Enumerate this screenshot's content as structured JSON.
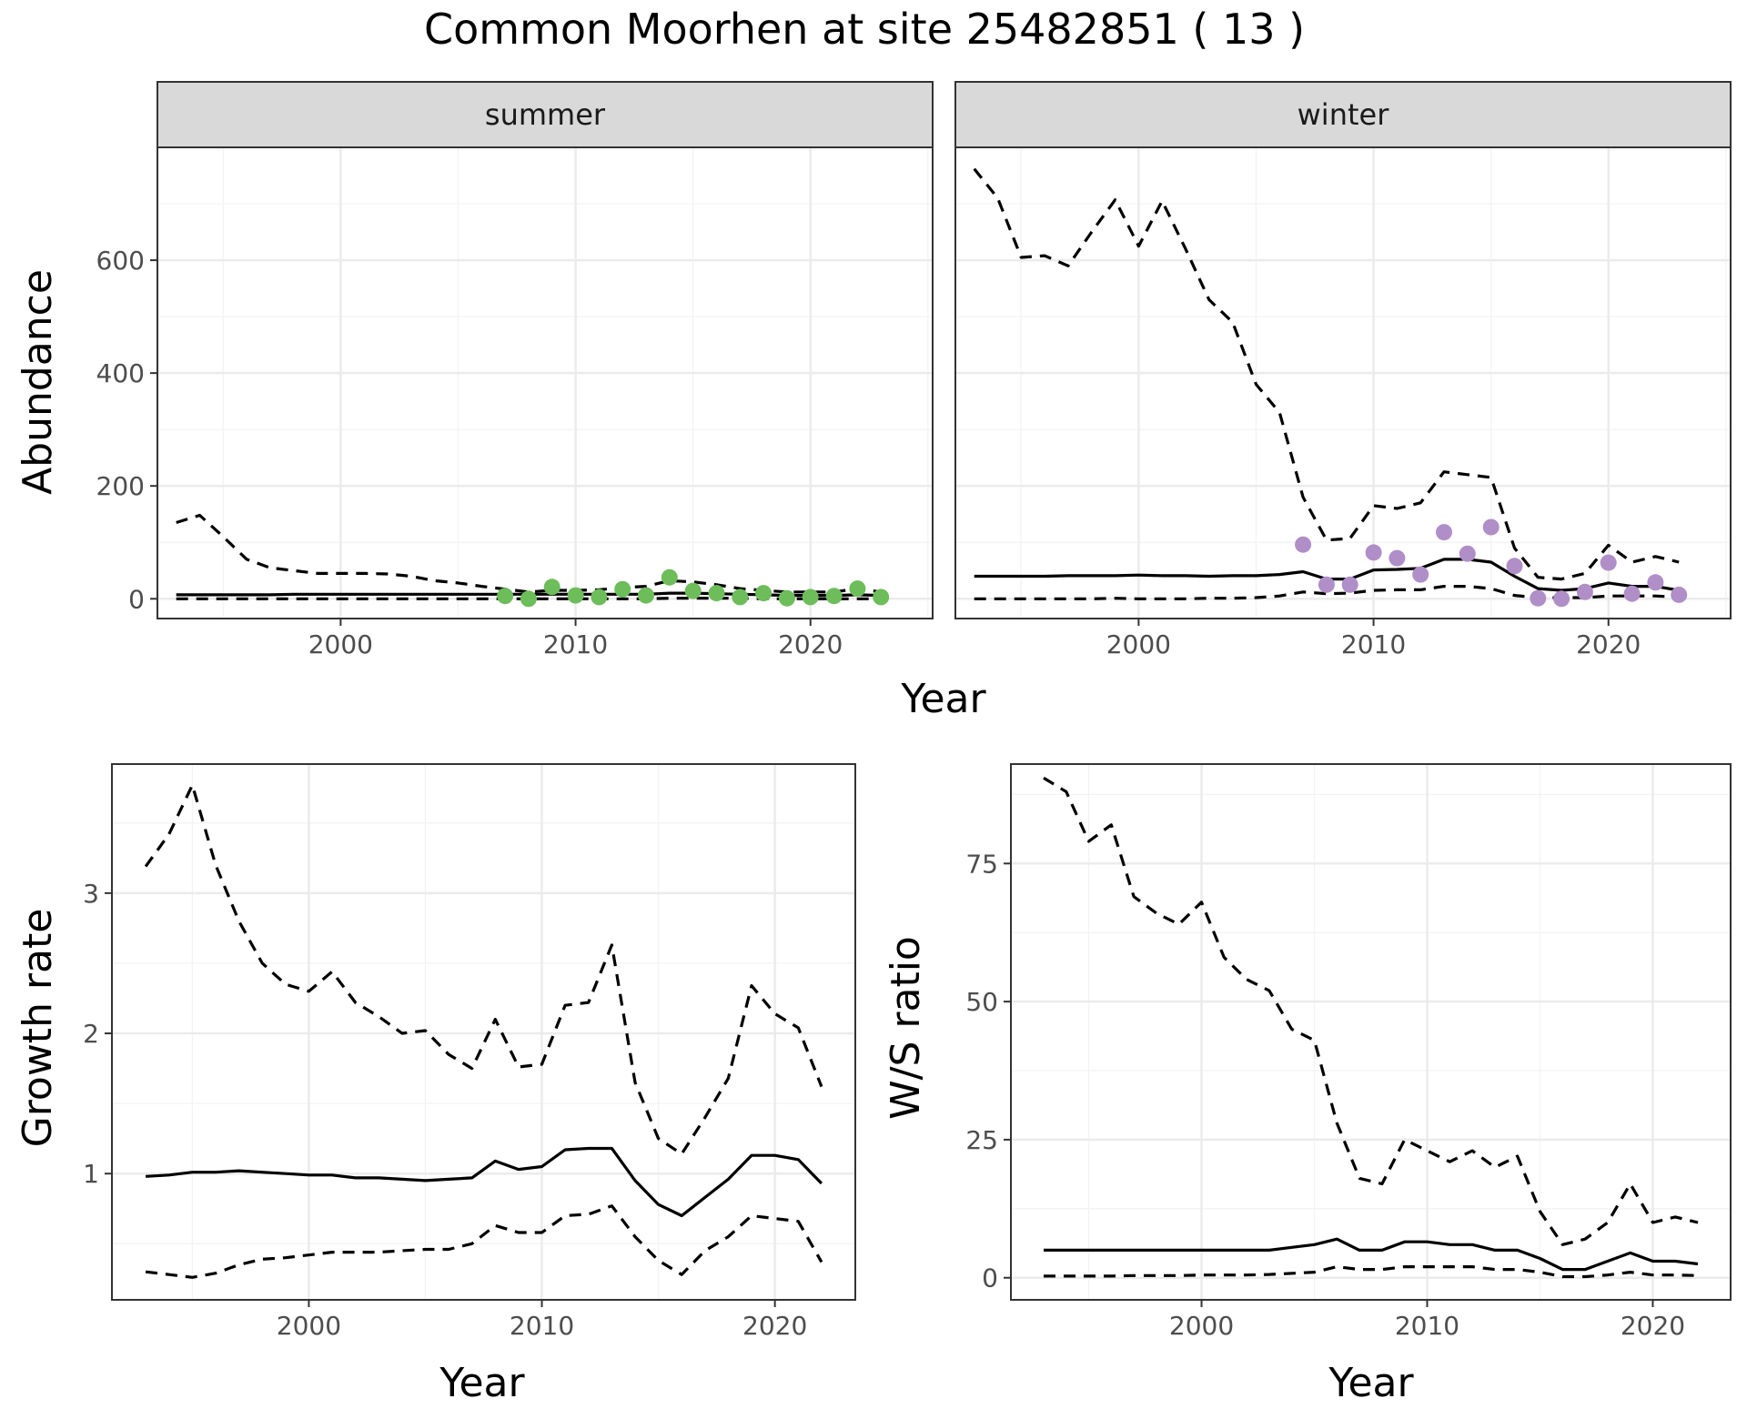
{
  "chart_data": [
    {
      "panel": "abundance",
      "type": "line",
      "title": "Common Moorhen at site 25482851 ( 13 )",
      "xlabel": "Year",
      "ylabel": "Abundance",
      "xlim": [
        1992.2,
        2025.2
      ],
      "ylim": [
        -35,
        800
      ],
      "xticks": [
        2000,
        2010,
        2020
      ],
      "yticks": [
        0,
        200,
        400,
        600
      ],
      "grid": true,
      "facets": [
        {
          "label": "summer",
          "point_color": "#6dbd5a",
          "x": [
            1993,
            1994,
            1995,
            1996,
            1997,
            1998,
            1999,
            2000,
            2001,
            2002,
            2003,
            2004,
            2005,
            2006,
            2007,
            2008,
            2009,
            2010,
            2011,
            2012,
            2013,
            2014,
            2015,
            2016,
            2017,
            2018,
            2019,
            2020,
            2021,
            2022,
            2023
          ],
          "estimate": [
            7,
            7,
            7,
            7,
            7,
            8,
            8,
            8,
            8,
            8,
            8,
            8,
            8,
            8,
            8,
            8,
            8,
            8,
            8,
            8,
            8,
            10,
            10,
            9,
            8,
            7,
            6,
            6,
            6,
            7,
            6
          ],
          "upper": [
            135,
            148,
            110,
            70,
            55,
            50,
            45,
            45,
            45,
            44,
            40,
            32,
            28,
            22,
            17,
            12,
            15,
            15,
            16,
            20,
            22,
            32,
            30,
            25,
            18,
            15,
            12,
            12,
            12,
            18,
            12
          ],
          "lower": [
            0,
            0,
            0,
            0,
            0,
            0,
            0,
            0,
            0,
            0,
            0,
            0,
            0,
            0,
            0,
            0,
            0,
            0,
            0,
            0,
            0,
            1,
            1,
            1,
            1,
            0,
            0,
            0,
            0,
            0,
            0
          ],
          "observed": {
            "x": [
              2007,
              2008,
              2009,
              2010,
              2011,
              2012,
              2013,
              2014,
              2015,
              2016,
              2017,
              2018,
              2019,
              2020,
              2021,
              2022,
              2023
            ],
            "y": [
              5,
              0,
              21,
              6,
              3,
              17,
              6,
              38,
              14,
              10,
              3,
              10,
              1,
              3,
              5,
              18,
              3
            ]
          }
        },
        {
          "label": "winter",
          "point_color": "#b08ec7",
          "x": [
            1993,
            1994,
            1995,
            1996,
            1997,
            1998,
            1999,
            2000,
            2001,
            2002,
            2003,
            2004,
            2005,
            2006,
            2007,
            2008,
            2009,
            2010,
            2011,
            2012,
            2013,
            2014,
            2015,
            2016,
            2017,
            2018,
            2019,
            2020,
            2021,
            2022,
            2023
          ],
          "estimate": [
            40,
            40,
            40,
            40,
            41,
            41,
            41,
            42,
            41,
            41,
            40,
            41,
            41,
            43,
            48,
            35,
            35,
            51,
            52,
            54,
            70,
            70,
            65,
            40,
            18,
            15,
            18,
            28,
            22,
            22,
            15
          ],
          "upper": [
            762,
            710,
            605,
            608,
            590,
            650,
            707,
            625,
            705,
            620,
            530,
            490,
            380,
            330,
            180,
            104,
            107,
            165,
            160,
            170,
            225,
            220,
            215,
            90,
            38,
            35,
            45,
            95,
            65,
            75,
            65
          ],
          "lower": [
            0,
            0,
            0,
            0,
            0,
            0,
            1,
            0,
            0,
            0,
            1,
            1,
            2,
            5,
            12,
            9,
            10,
            15,
            16,
            16,
            22,
            22,
            18,
            6,
            2,
            2,
            2,
            5,
            5,
            5,
            3
          ],
          "observed": {
            "x": [
              2007,
              2008,
              2009,
              2010,
              2011,
              2012,
              2013,
              2014,
              2015,
              2016,
              2017,
              2018,
              2019,
              2020,
              2021,
              2022,
              2023
            ],
            "y": [
              96,
              25,
              25,
              82,
              72,
              43,
              118,
              80,
              127,
              58,
              1,
              0,
              12,
              64,
              9,
              29,
              7
            ]
          }
        }
      ]
    },
    {
      "panel": "growth",
      "type": "line",
      "xlabel": "Year",
      "ylabel": "Growth rate",
      "xlim": [
        1991.55,
        2023.45
      ],
      "ylim": [
        0.1,
        3.92
      ],
      "xticks": [
        2000,
        2010,
        2020
      ],
      "yticks": [
        1,
        2,
        3
      ],
      "grid": true,
      "x": [
        1993,
        1994,
        1995,
        1996,
        1997,
        1998,
        1999,
        2000,
        2001,
        2002,
        2003,
        2004,
        2005,
        2006,
        2007,
        2008,
        2009,
        2010,
        2011,
        2012,
        2013,
        2014,
        2015,
        2016,
        2017,
        2018,
        2019,
        2020,
        2021,
        2022
      ],
      "estimate": [
        0.98,
        0.99,
        1.01,
        1.01,
        1.02,
        1.01,
        1.0,
        0.99,
        0.99,
        0.97,
        0.97,
        0.96,
        0.95,
        0.96,
        0.97,
        1.09,
        1.03,
        1.05,
        1.17,
        1.18,
        1.18,
        0.95,
        0.78,
        0.7,
        0.83,
        0.96,
        1.13,
        1.13,
        1.1,
        0.93
      ],
      "upper": [
        3.19,
        3.42,
        3.77,
        3.2,
        2.8,
        2.5,
        2.35,
        2.3,
        2.44,
        2.22,
        2.12,
        2.0,
        2.02,
        1.85,
        1.75,
        2.1,
        1.76,
        1.78,
        2.2,
        2.22,
        2.63,
        1.65,
        1.25,
        1.14,
        1.4,
        1.68,
        2.34,
        2.14,
        2.04,
        1.62
      ],
      "lower": [
        0.3,
        0.28,
        0.26,
        0.29,
        0.35,
        0.39,
        0.4,
        0.42,
        0.44,
        0.44,
        0.44,
        0.45,
        0.46,
        0.46,
        0.5,
        0.63,
        0.58,
        0.58,
        0.7,
        0.71,
        0.77,
        0.55,
        0.38,
        0.28,
        0.45,
        0.55,
        0.7,
        0.68,
        0.66,
        0.37
      ]
    },
    {
      "panel": "ratio",
      "type": "line",
      "xlabel": "Year",
      "ylabel": "W/S ratio",
      "xlim": [
        1991.55,
        2023.45
      ],
      "ylim": [
        -4,
        93
      ],
      "xticks": [
        2000,
        2010,
        2020
      ],
      "yticks": [
        0,
        25,
        50,
        75
      ],
      "grid": true,
      "x": [
        1993,
        1994,
        1995,
        1996,
        1997,
        1998,
        1999,
        2000,
        2001,
        2002,
        2003,
        2004,
        2005,
        2006,
        2007,
        2008,
        2009,
        2010,
        2011,
        2012,
        2013,
        2014,
        2015,
        2016,
        2017,
        2018,
        2019,
        2020,
        2021,
        2022
      ],
      "estimate": [
        5,
        5,
        5,
        5,
        5,
        5,
        5,
        5,
        5,
        5,
        5,
        5.5,
        6,
        7,
        5,
        5,
        6.5,
        6.5,
        6,
        6,
        5,
        5,
        3.5,
        1.5,
        1.5,
        3,
        4.5,
        3,
        3,
        2.5
      ],
      "upper": [
        90.5,
        88,
        79,
        82,
        69,
        66,
        64,
        68,
        58,
        54,
        52,
        45,
        43,
        28,
        18,
        17,
        25,
        23,
        21,
        23,
        20,
        22,
        12,
        6,
        7,
        10,
        17,
        10,
        11,
        10
      ],
      "lower": [
        0.3,
        0.3,
        0.3,
        0.3,
        0.4,
        0.4,
        0.4,
        0.5,
        0.5,
        0.5,
        0.6,
        0.8,
        1,
        2,
        1.5,
        1.5,
        2,
        2,
        2,
        2,
        1.5,
        1.5,
        1,
        0.2,
        0.2,
        0.5,
        1,
        0.5,
        0.5,
        0.4
      ]
    }
  ]
}
